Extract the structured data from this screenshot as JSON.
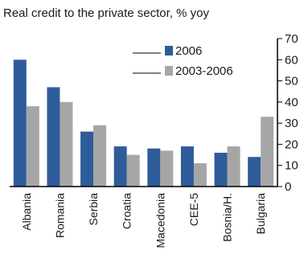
{
  "chart_data": {
    "type": "bar",
    "title": "Real credit to the private sector, % yoy",
    "categories": [
      "Albania",
      "Romania",
      "Serbia",
      "Croatia",
      "Macedonia",
      "CEE-5",
      "Bosnia/H.",
      "Bulgaria"
    ],
    "series": [
      {
        "name": "2006",
        "color": "#2e5c9a",
        "values": [
          60,
          47,
          26,
          19,
          18,
          19,
          16,
          14
        ]
      },
      {
        "name": "2003-2006",
        "color": "#a6a6a6",
        "values": [
          38,
          40,
          29,
          15,
          17,
          11,
          19,
          33
        ]
      }
    ],
    "ylim": [
      0,
      70
    ],
    "yticks": [
      0,
      10,
      20,
      30,
      40,
      50,
      60,
      70
    ],
    "y_axis_side": "right",
    "grid": false,
    "legend_position": "top-center"
  }
}
